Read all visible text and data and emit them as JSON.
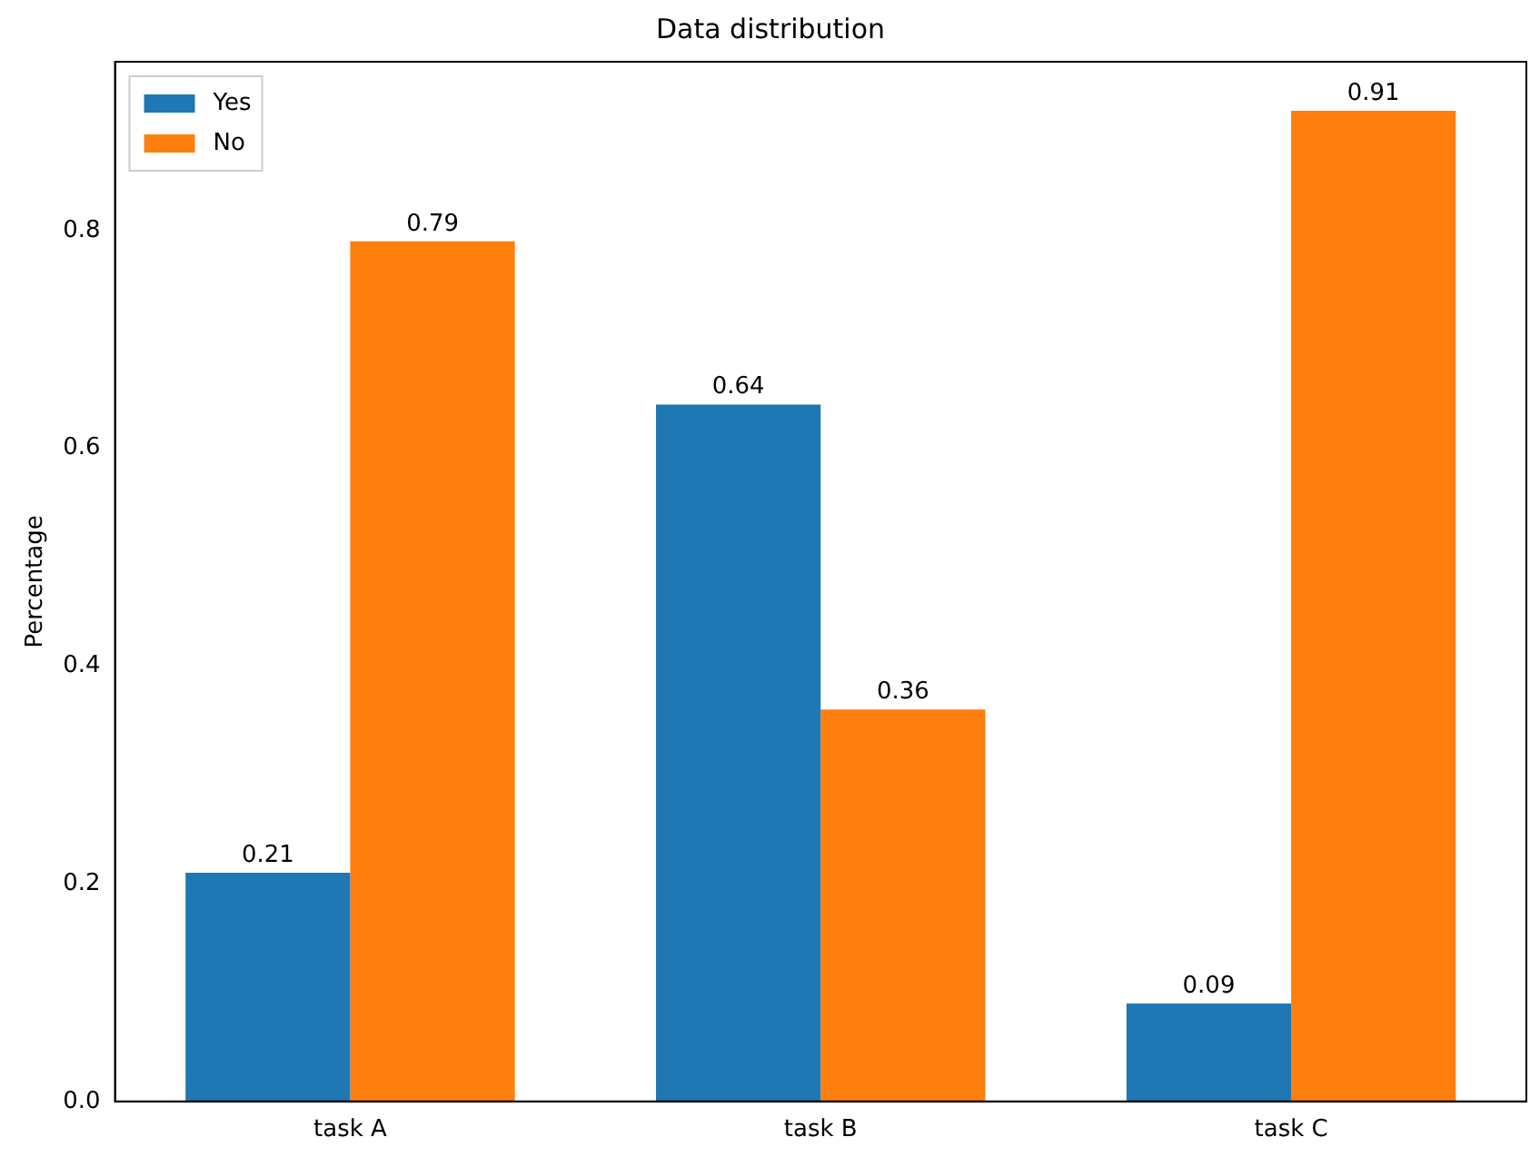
{
  "chart_data": {
    "type": "bar",
    "title": "Data distribution",
    "ylabel": "Percentage",
    "categories": [
      "task A",
      "task B",
      "task C"
    ],
    "series": [
      {
        "name": "Yes",
        "color": "#1f77b4",
        "values": [
          0.21,
          0.64,
          0.09
        ]
      },
      {
        "name": "No",
        "color": "#ff7f0e",
        "values": [
          0.79,
          0.36,
          0.91
        ]
      }
    ],
    "ylim": [
      0,
      0.955
    ],
    "yticks": [
      {
        "value": 0,
        "label": "0.0"
      },
      {
        "value": 0.2,
        "label": "0.2"
      },
      {
        "value": 0.4,
        "label": "0.4"
      },
      {
        "value": 0.6,
        "label": "0.6"
      },
      {
        "value": 0.8,
        "label": "0.8"
      }
    ],
    "data_labels": true,
    "legend": "top left",
    "grid": false
  }
}
